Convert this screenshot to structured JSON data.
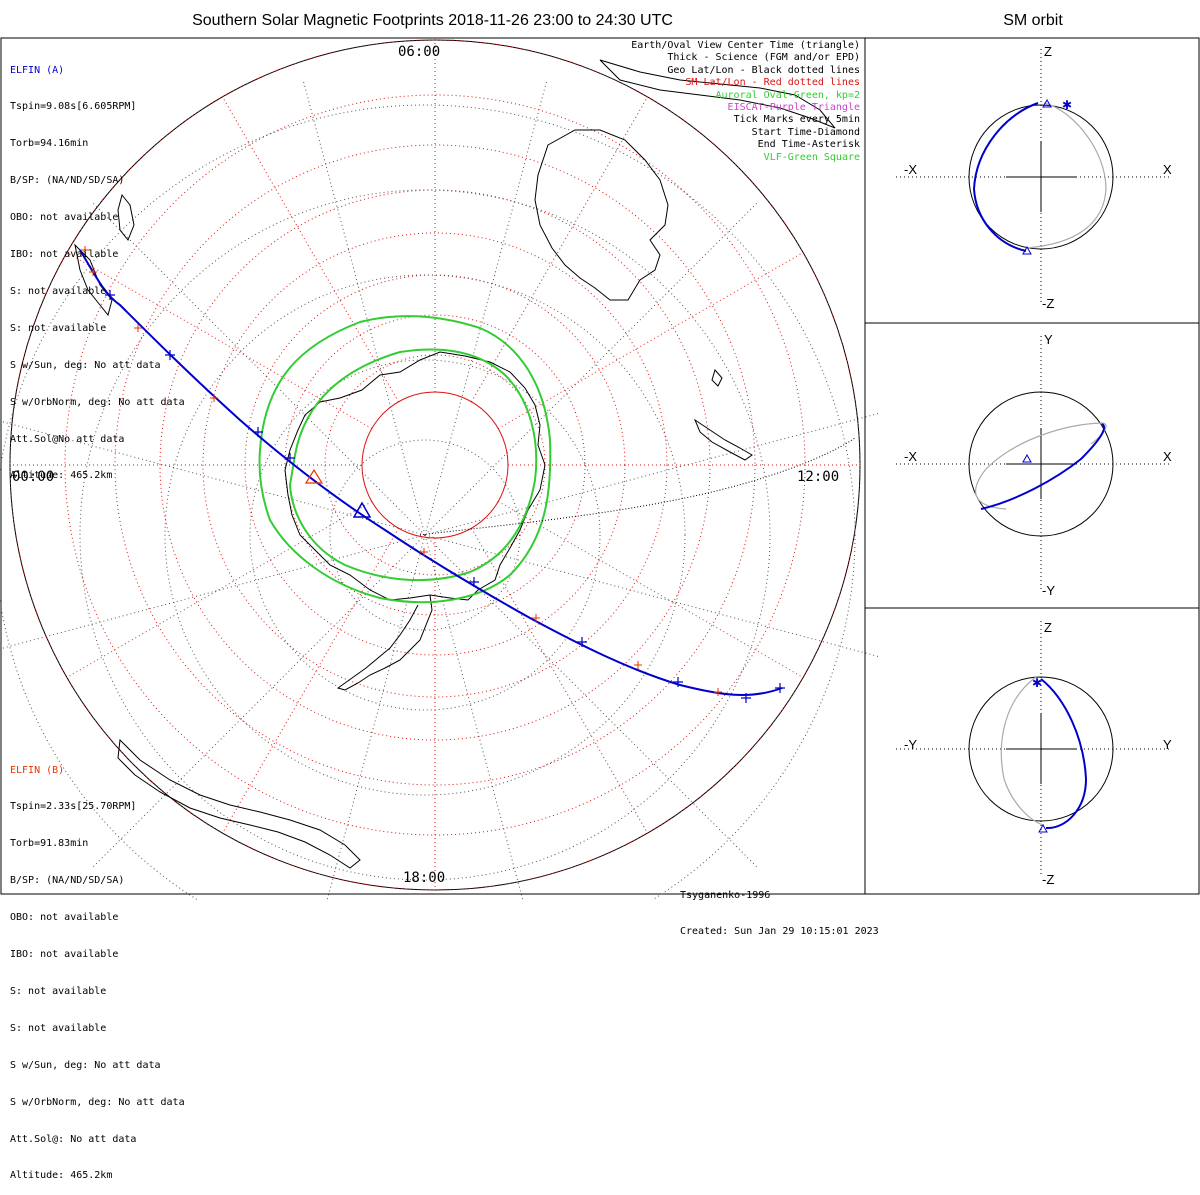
{
  "title": "Southern Solar Magnetic Footprints 2018-11-26 23:00 to 24:30 UTC",
  "sm_orbit_title": "SM orbit",
  "colors": {
    "elfin_a": "#0000cc",
    "elfin_b": "#ee3300",
    "auroral_oval": "#33cc33",
    "eiscat": "#cc44cc",
    "sm_grid": "#dd1111",
    "geo_grid": "#000000",
    "vlf": "#33cc33",
    "orbit_gray": "#aaaaaa"
  },
  "hour_labels": {
    "top": "06:00",
    "left": "00:00",
    "right": "12:00",
    "bottom": "18:00"
  },
  "elfin_a": {
    "name": "ELFIN (A)",
    "lines": [
      "Tspin=9.08s[6.605RPM]",
      "Torb=94.16min",
      "B/SP: (NA/ND/SD/SA)",
      "OBO: not available",
      "IBO: not available",
      "S: not available",
      "S: not available",
      "S w/Sun, deg: No att data",
      "S w/OrbNorm, deg: No att data",
      "Att.Sol@No att data",
      "Altitude: 465.2km"
    ]
  },
  "elfin_b": {
    "name": "ELFIN (B)",
    "lines": [
      "Tspin=2.33s[25.70RPM]",
      "Torb=91.83min",
      "B/SP: (NA/ND/SD/SA)",
      "OBO: not available",
      "IBO: not available",
      "S: not available",
      "S: not available",
      "S w/Sun, deg: No att data",
      "S w/OrbNorm, deg: No att data",
      "Att.Sol@: No att data",
      "Altitude: 465.2km"
    ]
  },
  "legend": [
    {
      "text": "Earth/Oval View Center Time (triangle)",
      "color": "#000000"
    },
    {
      "text": "Thick - Science (FGM and/or EPD)",
      "color": "#000000"
    },
    {
      "text": "Geo Lat/Lon - Black dotted lines",
      "color": "#000000"
    },
    {
      "text": "SM Lat/Lon - Red dotted lines",
      "color": "#dd1111"
    },
    {
      "text": "Auroral Oval-Green, kp=2",
      "color": "#33cc33"
    },
    {
      "text": "EISCAT-Purple Triangle",
      "color": "#cc44cc"
    },
    {
      "text": "Tick Marks every 5min",
      "color": "#000000"
    },
    {
      "text": "Start Time-Diamond",
      "color": "#000000"
    },
    {
      "text": "End Time-Asterisk",
      "color": "#000000"
    },
    {
      "text": "VLF-Green Square",
      "color": "#33cc33"
    }
  ],
  "footer": {
    "model": "Tsyganenko-1996",
    "created": "Created: Sun Jan 29 10:15:01 2023"
  },
  "panels": [
    {
      "left": "-X",
      "right": "X",
      "top": "Z",
      "bottom": "-Z"
    },
    {
      "left": "-X",
      "right": "X",
      "top": "Y",
      "bottom": "-Y"
    },
    {
      "left": "-Y",
      "right": "Y",
      "top": "Z",
      "bottom": "-Z"
    }
  ]
}
